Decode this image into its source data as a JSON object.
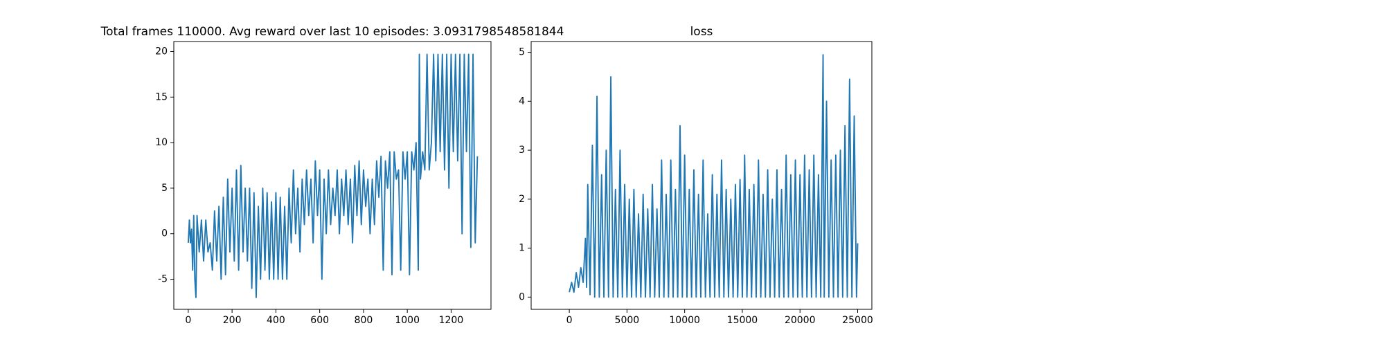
{
  "chart_data": [
    {
      "type": "line",
      "title": "Total frames 110000. Avg reward over last 10 episodes: 3.0931798548581844",
      "x": [
        0,
        5,
        10,
        15,
        20,
        25,
        30,
        35,
        40,
        50,
        60,
        70,
        80,
        90,
        100,
        110,
        120,
        130,
        140,
        150,
        160,
        170,
        180,
        190,
        200,
        210,
        220,
        230,
        240,
        250,
        260,
        270,
        280,
        290,
        300,
        310,
        320,
        330,
        340,
        350,
        360,
        370,
        380,
        390,
        400,
        410,
        420,
        430,
        440,
        450,
        460,
        470,
        480,
        490,
        500,
        510,
        520,
        530,
        540,
        550,
        560,
        570,
        580,
        590,
        600,
        610,
        620,
        630,
        640,
        650,
        660,
        670,
        680,
        690,
        700,
        710,
        720,
        730,
        740,
        750,
        760,
        770,
        780,
        790,
        800,
        810,
        820,
        830,
        840,
        850,
        860,
        870,
        880,
        890,
        900,
        910,
        920,
        930,
        940,
        950,
        960,
        970,
        980,
        990,
        1000,
        1010,
        1020,
        1030,
        1040,
        1050,
        1055,
        1060,
        1070,
        1080,
        1090,
        1100,
        1110,
        1120,
        1130,
        1140,
        1150,
        1160,
        1170,
        1180,
        1190,
        1200,
        1210,
        1220,
        1230,
        1240,
        1250,
        1260,
        1270,
        1280,
        1290,
        1300,
        1310,
        1320
      ],
      "series": [
        {
          "color": "#1f77b4",
          "values": [
            -1,
            1.5,
            -1,
            0.5,
            -4,
            2,
            -5,
            -7,
            2,
            -2,
            1.5,
            -3,
            1.5,
            -2,
            -1,
            -4,
            2.5,
            -3,
            3,
            -5,
            4,
            -4.5,
            6,
            -2,
            5,
            -3,
            7,
            -4,
            7.5,
            -2,
            5,
            -3,
            5,
            -6,
            4.5,
            -7,
            3,
            -5,
            5,
            -4,
            4.5,
            -5,
            3.5,
            -5,
            4.5,
            -5,
            4,
            -5,
            3,
            -5,
            5,
            -1,
            7,
            0,
            5,
            -2,
            6,
            1,
            7,
            2,
            6,
            -1,
            8,
            2,
            7,
            -5,
            6,
            0,
            7,
            1,
            5,
            2,
            7,
            0,
            6,
            2,
            7,
            1,
            6,
            -1,
            7.5,
            2,
            8,
            1,
            7,
            3,
            6,
            0,
            6,
            1,
            8,
            4,
            8.5,
            -4,
            8,
            5,
            9,
            -4.5,
            9,
            6,
            7,
            -4,
            9,
            6,
            9,
            -4.5,
            9,
            7,
            10,
            -4,
            19.7,
            6,
            9,
            7,
            19.7,
            7,
            10,
            19.7,
            8,
            19.7,
            9,
            19.7,
            7,
            19.7,
            5,
            19.7,
            9,
            19.7,
            8,
            19.7,
            0,
            19.7,
            9,
            19.7,
            -1.5,
            19.7,
            -1,
            8.5
          ]
        }
      ],
      "xlim": [
        -66,
        1382
      ],
      "ylim": [
        -8.3,
        21.1
      ],
      "xticks": [
        0,
        200,
        400,
        600,
        800,
        1000,
        1200
      ],
      "yticks": [
        -5,
        0,
        5,
        10,
        15,
        20
      ]
    },
    {
      "type": "line",
      "title": "loss",
      "x": [
        0,
        200,
        400,
        600,
        800,
        1000,
        1200,
        1400,
        1500,
        1600,
        1800,
        2000,
        2200,
        2400,
        2600,
        2800,
        3000,
        3200,
        3400,
        3600,
        3800,
        4000,
        4200,
        4400,
        4600,
        4800,
        5000,
        5200,
        5400,
        5600,
        5800,
        6000,
        6200,
        6400,
        6600,
        6800,
        7000,
        7200,
        7400,
        7600,
        7800,
        8000,
        8200,
        8400,
        8600,
        8800,
        9000,
        9200,
        9400,
        9600,
        9800,
        10000,
        10200,
        10400,
        10600,
        10800,
        11000,
        11200,
        11400,
        11600,
        11800,
        12000,
        12200,
        12400,
        12600,
        12800,
        13000,
        13200,
        13400,
        13600,
        13800,
        14000,
        14200,
        14400,
        14600,
        14800,
        15000,
        15200,
        15400,
        15600,
        15800,
        16000,
        16200,
        16400,
        16600,
        16800,
        17000,
        17200,
        17400,
        17600,
        17800,
        18000,
        18200,
        18400,
        18600,
        18800,
        19000,
        19200,
        19400,
        19600,
        19800,
        20000,
        20200,
        20400,
        20600,
        20800,
        21000,
        21200,
        21400,
        21600,
        21800,
        22000,
        22100,
        22300,
        22500,
        22700,
        22900,
        23100,
        23300,
        23500,
        23700,
        23900,
        24100,
        24300,
        24500,
        24700,
        24900,
        25000
      ],
      "series": [
        {
          "color": "#1f77b4",
          "values": [
            0.1,
            0.3,
            0.1,
            0.5,
            0.2,
            0.6,
            0.3,
            1.2,
            0.2,
            2.3,
            0.05,
            3.1,
            0,
            4.1,
            0,
            2.5,
            0,
            3.0,
            0,
            4.5,
            0,
            2.2,
            0,
            3.0,
            0,
            2.3,
            0,
            2.0,
            0,
            2.2,
            0,
            1.7,
            0,
            2.1,
            0,
            1.8,
            0,
            2.3,
            0,
            1.8,
            0,
            2.8,
            0,
            2.1,
            0,
            2.8,
            0,
            2.2,
            0,
            3.5,
            0,
            2.9,
            0,
            2.2,
            0,
            2.6,
            0,
            2.1,
            0,
            2.8,
            0,
            1.7,
            0,
            2.5,
            0,
            2.1,
            0,
            2.8,
            0,
            2.2,
            0,
            2.0,
            0,
            2.3,
            0,
            2.4,
            0,
            2.9,
            0,
            2.2,
            0,
            2.3,
            0,
            2.8,
            0,
            2.1,
            0,
            2.6,
            0,
            2.0,
            0,
            2.6,
            0,
            2.2,
            0,
            2.9,
            0,
            2.5,
            0,
            2.8,
            0,
            2.5,
            0,
            2.9,
            0,
            2.6,
            0,
            2.9,
            0,
            2.5,
            0,
            4.95,
            0,
            4.0,
            0,
            2.8,
            0,
            2.9,
            0,
            3.0,
            0,
            3.5,
            0,
            4.45,
            0,
            3.7,
            0,
            1.1
          ]
        }
      ],
      "xlim": [
        -3308,
        26230
      ],
      "ylim": [
        -0.25,
        5.22
      ],
      "xticks": [
        0,
        5000,
        10000,
        15000,
        20000,
        25000
      ],
      "yticks": [
        0,
        1,
        2,
        3,
        4,
        5
      ]
    }
  ]
}
